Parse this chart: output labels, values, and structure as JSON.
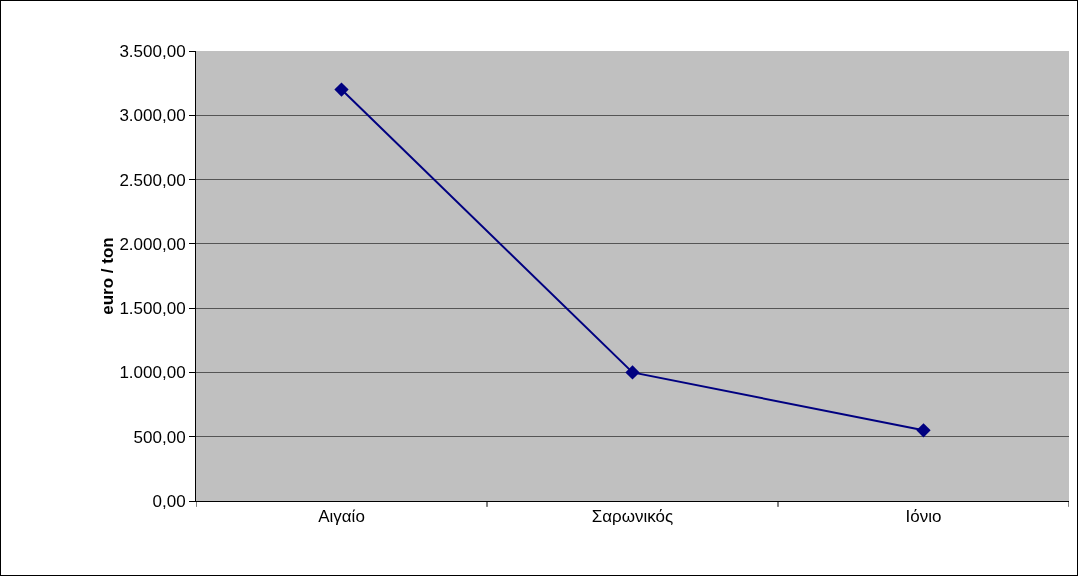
{
  "chart_data": {
    "type": "line",
    "ylabel": "euro / ton",
    "categories": [
      "Αιγαίο",
      "Σαρωνικός",
      "Ιόνιο"
    ],
    "series": [
      {
        "color": "#000080",
        "values": [
          3200,
          1000,
          550
        ]
      }
    ],
    "ylim": [
      0,
      3500
    ],
    "yticks": [
      {
        "value": 0,
        "label": "0,00"
      },
      {
        "value": 500,
        "label": "500,00"
      },
      {
        "value": 1000,
        "label": "1.000,00"
      },
      {
        "value": 1500,
        "label": "1.500,00"
      },
      {
        "value": 2000,
        "label": "2.000,00"
      },
      {
        "value": 2500,
        "label": "2.500,00"
      },
      {
        "value": 3000,
        "label": "3.000,00"
      },
      {
        "value": 3500,
        "label": "3.500,00"
      }
    ],
    "grid": "y",
    "marker": "diamond",
    "line_style": "solid"
  }
}
